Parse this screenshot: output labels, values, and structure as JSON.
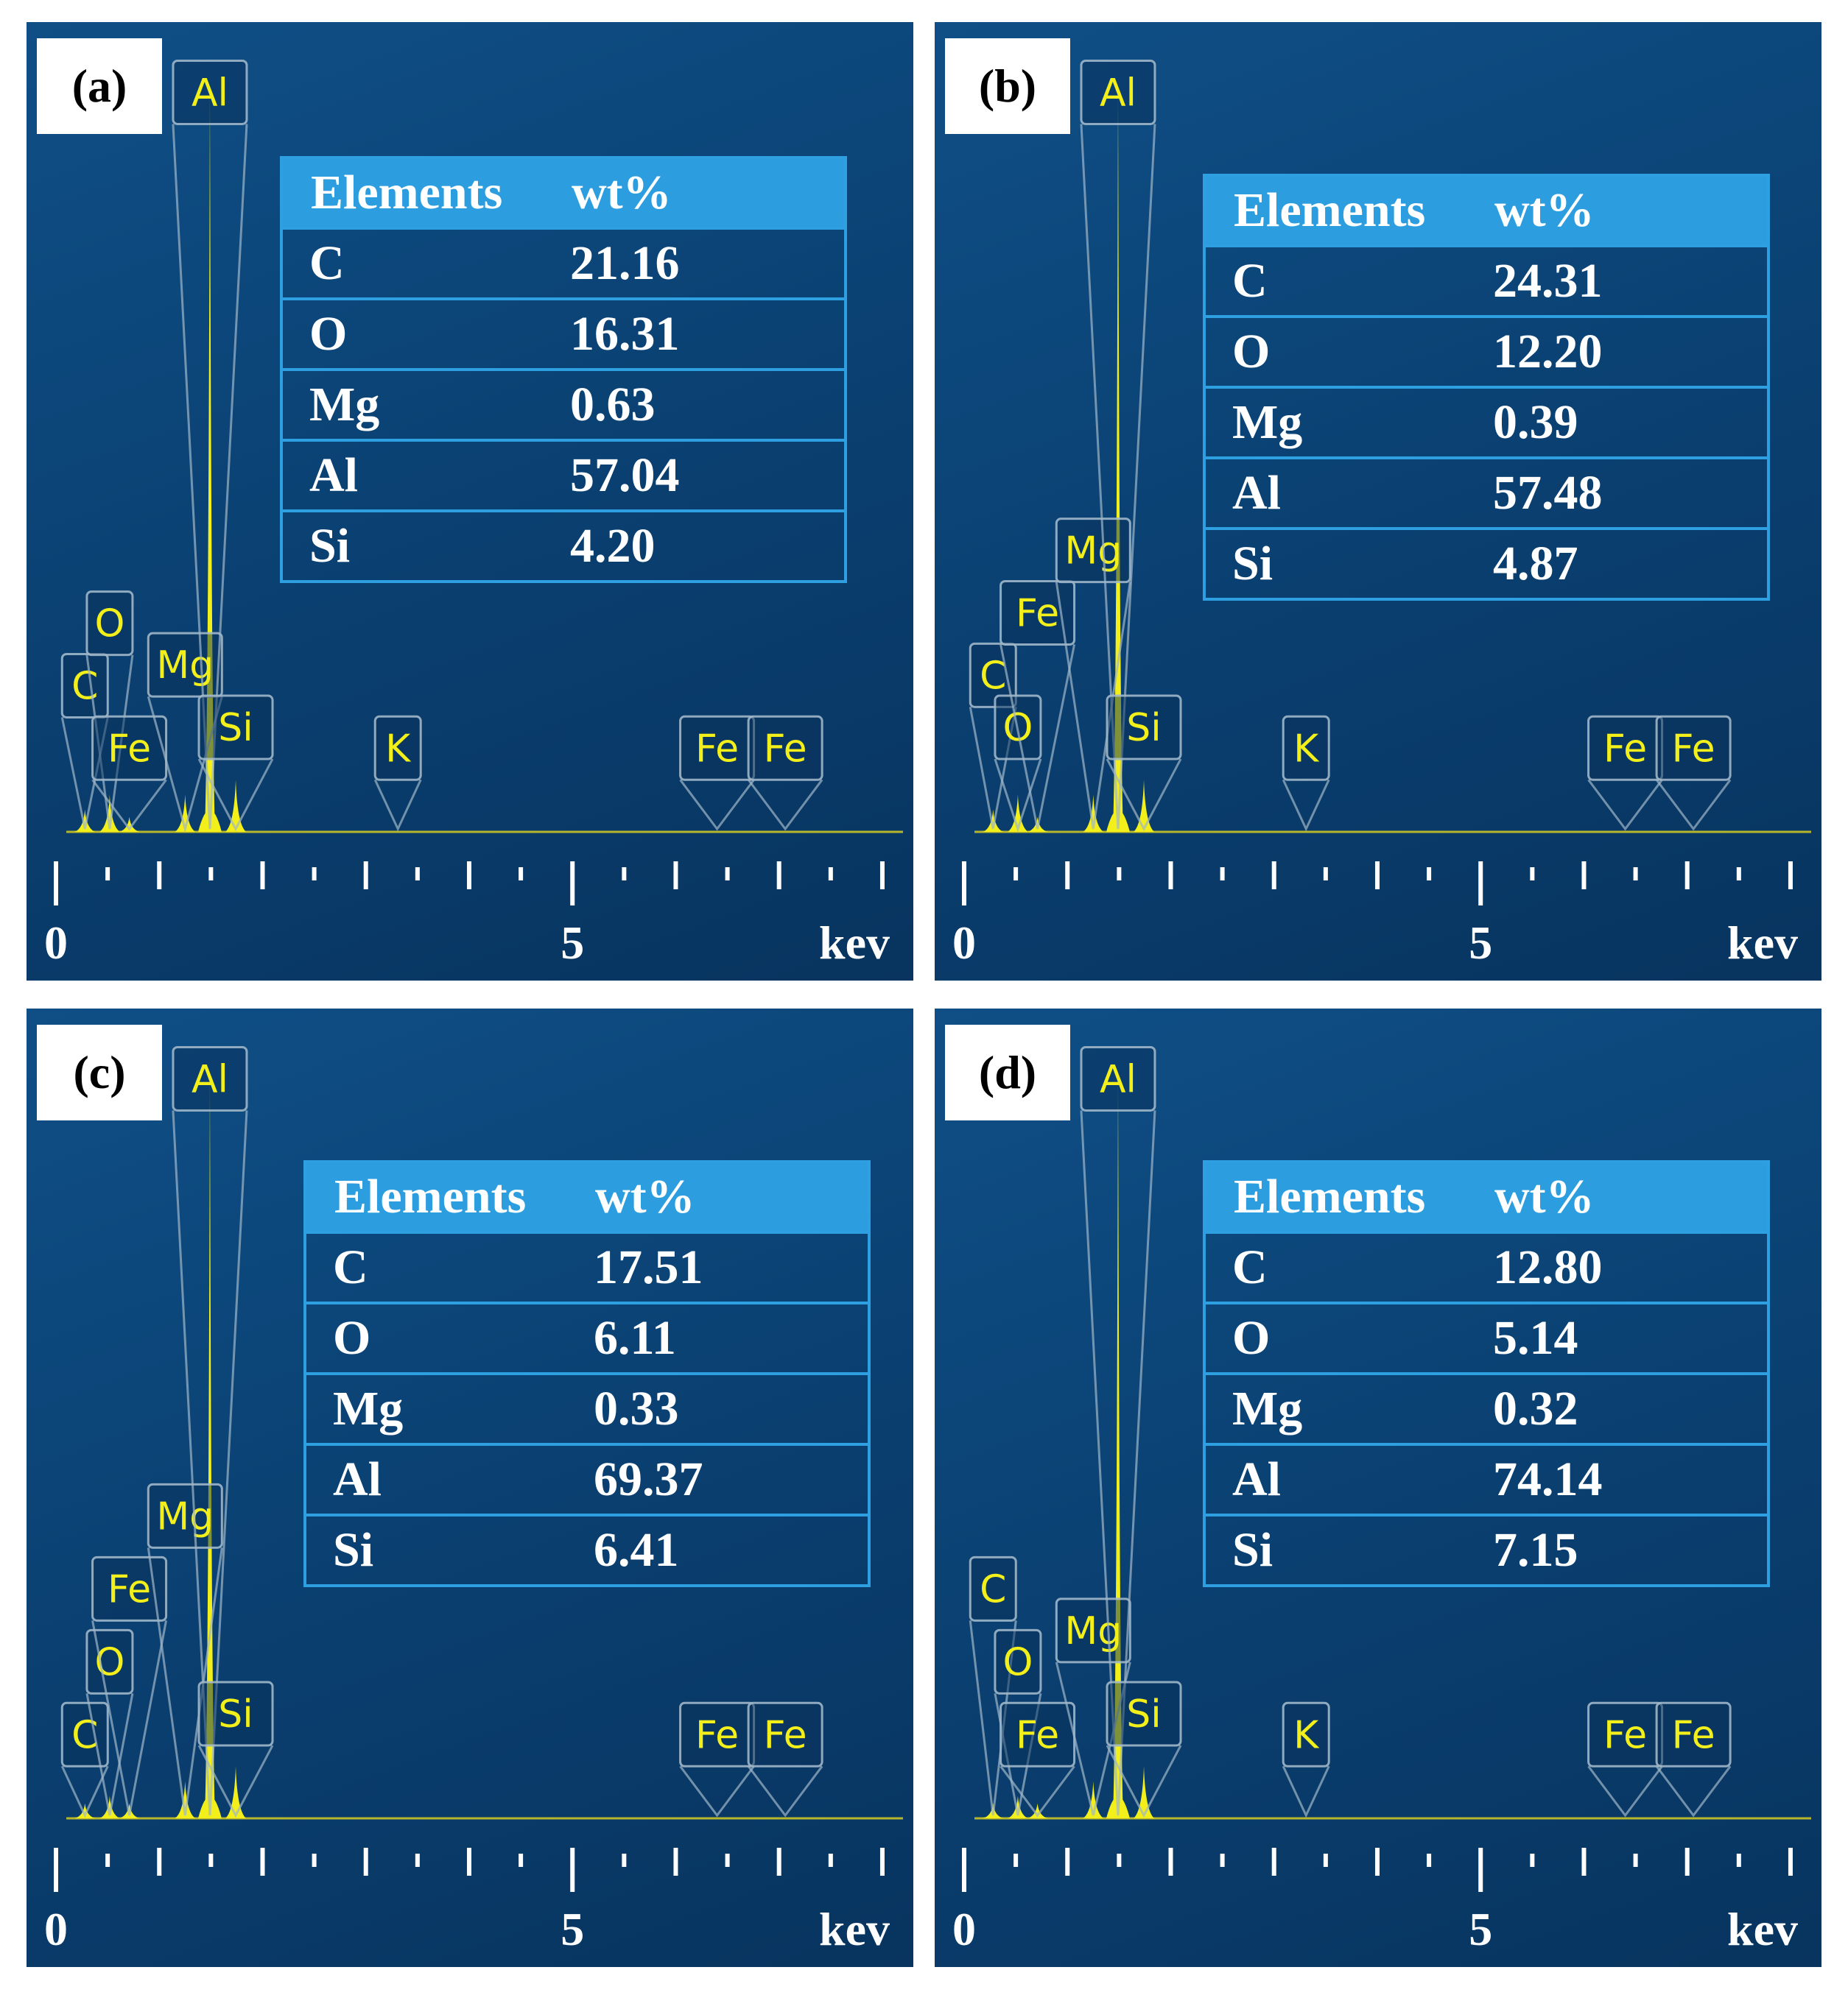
{
  "chart_data": [
    {
      "panel": "(a)",
      "type": "eds-spectrum",
      "xlabel": "kev",
      "x_ticks": [
        "0",
        "5"
      ],
      "xlim": [
        0,
        8.2
      ],
      "peaks": [
        {
          "label": "C",
          "energy": 0.28,
          "height": 0.03,
          "label_level": 0.22
        },
        {
          "label": "O",
          "energy": 0.52,
          "height": 0.05,
          "label_level": 0.34
        },
        {
          "label": "Fe",
          "energy": 0.71,
          "height": 0.02,
          "label_level": 0.1
        },
        {
          "label": "Mg",
          "energy": 1.25,
          "height": 0.05,
          "label_level": 0.26
        },
        {
          "label": "Al",
          "energy": 1.49,
          "height": 1.0,
          "label_level": 1.36
        },
        {
          "label": "Si",
          "energy": 1.74,
          "height": 0.07,
          "label_level": 0.14
        },
        {
          "label": "K",
          "energy": 3.31,
          "height": 0.0,
          "label_level": 0.1
        },
        {
          "label": "Fe",
          "energy": 6.4,
          "height": 0.0,
          "label_level": 0.1
        },
        {
          "label": "Fe",
          "energy": 7.06,
          "height": 0.0,
          "label_level": 0.1
        }
      ],
      "table": {
        "headers": [
          "Elements",
          "wt%"
        ],
        "rows": [
          [
            "C",
            "21.16"
          ],
          [
            "O",
            "16.31"
          ],
          [
            "Mg",
            "0.63"
          ],
          [
            "Al",
            "57.04"
          ],
          [
            "Si",
            "4.20"
          ]
        ]
      }
    },
    {
      "panel": "(b)",
      "type": "eds-spectrum",
      "xlabel": "kev",
      "x_ticks": [
        "0",
        "5"
      ],
      "xlim": [
        0,
        8.2
      ],
      "peaks": [
        {
          "label": "C",
          "energy": 0.28,
          "height": 0.03,
          "label_level": 0.24
        },
        {
          "label": "O",
          "energy": 0.52,
          "height": 0.05,
          "label_level": 0.14
        },
        {
          "label": "Fe",
          "energy": 0.71,
          "height": 0.02,
          "label_level": 0.36
        },
        {
          "label": "Mg",
          "energy": 1.25,
          "height": 0.05,
          "label_level": 0.48
        },
        {
          "label": "Al",
          "energy": 1.49,
          "height": 1.0,
          "label_level": 1.36
        },
        {
          "label": "Si",
          "energy": 1.74,
          "height": 0.07,
          "label_level": 0.14
        },
        {
          "label": "K",
          "energy": 3.31,
          "height": 0.0,
          "label_level": 0.1
        },
        {
          "label": "Fe",
          "energy": 6.4,
          "height": 0.0,
          "label_level": 0.1
        },
        {
          "label": "Fe",
          "energy": 7.06,
          "height": 0.0,
          "label_level": 0.1
        }
      ],
      "table": {
        "headers": [
          "Elements",
          "wt%"
        ],
        "rows": [
          [
            "C",
            "24.31"
          ],
          [
            "O",
            "12.20"
          ],
          [
            "Mg",
            "0.39"
          ],
          [
            "Al",
            "57.48"
          ],
          [
            "Si",
            "4.87"
          ]
        ]
      }
    },
    {
      "panel": "(c)",
      "type": "eds-spectrum",
      "xlabel": "kev",
      "x_ticks": [
        "0",
        "5"
      ],
      "xlim": [
        0,
        8.2
      ],
      "peaks": [
        {
          "label": "C",
          "energy": 0.28,
          "height": 0.02,
          "label_level": 0.1
        },
        {
          "label": "O",
          "energy": 0.52,
          "height": 0.03,
          "label_level": 0.24
        },
        {
          "label": "Fe",
          "energy": 0.71,
          "height": 0.02,
          "label_level": 0.38
        },
        {
          "label": "Mg",
          "energy": 1.25,
          "height": 0.05,
          "label_level": 0.52
        },
        {
          "label": "Al",
          "energy": 1.49,
          "height": 1.0,
          "label_level": 1.36
        },
        {
          "label": "Si",
          "energy": 1.74,
          "height": 0.07,
          "label_level": 0.14
        },
        {
          "label": "Fe",
          "energy": 6.4,
          "height": 0.0,
          "label_level": 0.1
        },
        {
          "label": "Fe",
          "energy": 7.06,
          "height": 0.0,
          "label_level": 0.1
        }
      ],
      "table": {
        "headers": [
          "Elements",
          "wt%"
        ],
        "rows": [
          [
            "C",
            "17.51"
          ],
          [
            "O",
            "6.11"
          ],
          [
            "Mg",
            "0.33"
          ],
          [
            "Al",
            "69.37"
          ],
          [
            "Si",
            "6.41"
          ]
        ]
      }
    },
    {
      "panel": "(d)",
      "type": "eds-spectrum",
      "xlabel": "kev",
      "x_ticks": [
        "0",
        "5"
      ],
      "xlim": [
        0,
        8.2
      ],
      "peaks": [
        {
          "label": "C",
          "energy": 0.28,
          "height": 0.02,
          "label_level": 0.38
        },
        {
          "label": "O",
          "energy": 0.52,
          "height": 0.03,
          "label_level": 0.24
        },
        {
          "label": "Fe",
          "energy": 0.71,
          "height": 0.02,
          "label_level": 0.1
        },
        {
          "label": "Mg",
          "energy": 1.25,
          "height": 0.05,
          "label_level": 0.3
        },
        {
          "label": "Al",
          "energy": 1.49,
          "height": 1.0,
          "label_level": 1.36
        },
        {
          "label": "Si",
          "energy": 1.74,
          "height": 0.07,
          "label_level": 0.14
        },
        {
          "label": "K",
          "energy": 3.31,
          "height": 0.0,
          "label_level": 0.1
        },
        {
          "label": "Fe",
          "energy": 6.4,
          "height": 0.0,
          "label_level": 0.1
        },
        {
          "label": "Fe",
          "energy": 7.06,
          "height": 0.0,
          "label_level": 0.1
        }
      ],
      "table": {
        "headers": [
          "Elements",
          "wt%"
        ],
        "rows": [
          [
            "C",
            "12.80"
          ],
          [
            "O",
            "5.14"
          ],
          [
            "Mg",
            "0.32"
          ],
          [
            "Al",
            "74.14"
          ],
          [
            "Si",
            "7.15"
          ]
        ]
      }
    }
  ],
  "colors": {
    "background": "#0a3f70",
    "spectrum": "#f2ef1a",
    "table_header": "#2c9ee0",
    "table_border": "#2e9fe0",
    "label_box": "#9fb6c8"
  }
}
